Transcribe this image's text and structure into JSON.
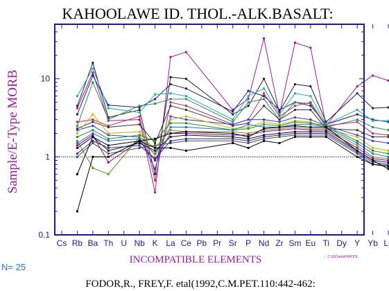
{
  "chart_data": {
    "type": "line",
    "title": "KAHOOLAWE ID. THOL.-ALK.BASALT:",
    "xlabel": "INCOMPATIBLE ELEMENTS",
    "ylabel": "Sample/E-Type MORB",
    "categories": [
      "Cs",
      "Rb",
      "Ba",
      "Th",
      "U",
      "Nb",
      "K",
      "La",
      "Ce",
      "Pb",
      "Pr",
      "Sr",
      "P",
      "Nd",
      "Zr",
      "Sm",
      "Eu",
      "Ti",
      "Dy",
      "Y",
      "Yb",
      "Lu"
    ],
    "y_scale": "log",
    "ylim": [
      0.1,
      50
    ],
    "y_ticks": [
      {
        "value": 0.1,
        "label": "0.1"
      },
      {
        "value": 1,
        "label": "1"
      },
      {
        "value": 10,
        "label": "10"
      }
    ],
    "reference_line": 1,
    "n_label": "N= 25",
    "filepath_label": "← C:\\IGData\\KAHOOL",
    "citation": "FODOR,R., FREY,F. etal(1992,C.M.PET.110:442-462:",
    "colors": {
      "axes": "#1a1a8c",
      "title": "#000000",
      "label": "#9b1a9b",
      "tick_text": "#1a1a8c",
      "n_label": "#2a72c8",
      "reference": "#1a1a8c"
    },
    "series": [
      {
        "color": "#9b1a9b",
        "values": [
          null,
          4.2,
          12.0,
          2.9,
          null,
          3.0,
          0.35,
          19.0,
          22.0,
          null,
          null,
          4.0,
          5.5,
          33.0,
          3.5,
          29.0,
          25.0,
          2.5,
          null,
          8.0,
          11.0,
          9.5
        ]
      },
      {
        "color": "#222222",
        "values": [
          null,
          4.5,
          16.0,
          3.2,
          null,
          4.0,
          0.6,
          10.5,
          10.0,
          null,
          null,
          3.5,
          4.5,
          10.0,
          3.8,
          8.5,
          8.0,
          2.8,
          null,
          6.5,
          4.2,
          4.3
        ]
      },
      {
        "color": "#1a1a8c",
        "values": [
          null,
          3.5,
          11.0,
          4.6,
          null,
          4.3,
          5.5,
          8.5,
          7.5,
          null,
          null,
          3.8,
          7.0,
          6.0,
          4.0,
          5.0,
          4.5,
          2.6,
          null,
          3.5,
          3.0,
          2.8
        ]
      },
      {
        "color": "#22a8b8",
        "values": [
          null,
          6.0,
          13.5,
          4.2,
          null,
          3.7,
          6.3,
          6.5,
          6.0,
          null,
          null,
          3.0,
          6.0,
          7.5,
          3.5,
          6.5,
          6.0,
          2.6,
          null,
          4.0,
          2.9,
          2.9
        ]
      },
      {
        "color": "#2e8b57",
        "values": [
          null,
          2.5,
          9.0,
          3.0,
          null,
          4.5,
          4.8,
          5.5,
          5.5,
          null,
          null,
          2.8,
          5.0,
          5.5,
          3.0,
          5.0,
          4.8,
          2.4,
          null,
          3.0,
          2.4,
          2.2
        ]
      },
      {
        "color": "#b03060",
        "values": [
          null,
          2.8,
          3.0,
          2.5,
          null,
          3.3,
          0.5,
          5.0,
          4.5,
          null,
          null,
          2.6,
          3.0,
          6.5,
          3.3,
          4.5,
          5.0,
          2.5,
          null,
          2.8,
          2.0,
          1.9
        ]
      },
      {
        "color": "#333333",
        "values": [
          null,
          2.3,
          2.8,
          2.4,
          null,
          2.6,
          1.5,
          4.5,
          4.0,
          null,
          null,
          2.5,
          2.7,
          4.5,
          3.0,
          4.0,
          4.0,
          2.3,
          null,
          2.2,
          1.8,
          1.8
        ]
      },
      {
        "color": "#3a3acc",
        "values": [
          null,
          2.2,
          2.5,
          1.9,
          null,
          1.8,
          0.7,
          3.3,
          3.0,
          null,
          null,
          2.6,
          3.0,
          3.0,
          2.8,
          3.2,
          3.0,
          2.5,
          null,
          1.9,
          1.6,
          1.5
        ]
      },
      {
        "color": "#c8b400",
        "values": [
          null,
          2.0,
          3.5,
          2.0,
          null,
          2.1,
          1.0,
          3.0,
          3.3,
          null,
          null,
          2.3,
          2.4,
          2.8,
          2.6,
          2.9,
          2.8,
          2.3,
          null,
          1.8,
          1.3,
          1.2
        ]
      },
      {
        "color": "#228b22",
        "values": [
          null,
          1.8,
          2.2,
          1.7,
          null,
          1.9,
          1.6,
          2.7,
          2.7,
          null,
          null,
          2.2,
          2.3,
          2.6,
          2.5,
          2.8,
          2.7,
          2.5,
          null,
          1.6,
          1.2,
          1.1
        ]
      },
      {
        "color": "#1f6fd0",
        "values": [
          null,
          1.5,
          2.0,
          1.6,
          null,
          1.7,
          1.1,
          2.4,
          2.4,
          null,
          null,
          2.2,
          2.6,
          2.4,
          2.4,
          2.6,
          2.6,
          2.4,
          null,
          1.5,
          1.1,
          1.0
        ]
      },
      {
        "color": "#6b8e23",
        "values": [
          null,
          1.6,
          0.72,
          0.6,
          null,
          1.8,
          1.3,
          2.2,
          2.1,
          null,
          null,
          2.1,
          2.0,
          2.2,
          2.3,
          2.4,
          2.3,
          2.3,
          null,
          1.4,
          1.0,
          0.95
        ]
      },
      {
        "color": "#8b008b",
        "values": [
          null,
          1.4,
          1.9,
          0.85,
          null,
          1.6,
          0.9,
          2.0,
          2.0,
          null,
          null,
          1.9,
          1.9,
          2.1,
          2.2,
          2.3,
          2.2,
          2.2,
          null,
          1.3,
          0.95,
          0.9
        ]
      },
      {
        "color": "#111111",
        "values": [
          null,
          1.3,
          1.8,
          1.2,
          null,
          1.5,
          1.2,
          1.8,
          1.9,
          null,
          null,
          1.8,
          1.7,
          1.9,
          2.0,
          2.1,
          2.1,
          2.1,
          null,
          1.2,
          0.9,
          0.85
        ]
      },
      {
        "color": "#2a2a9c",
        "values": [
          null,
          1.1,
          1.6,
          1.3,
          null,
          1.4,
          0.95,
          1.6,
          1.7,
          null,
          null,
          1.7,
          1.6,
          1.8,
          1.9,
          2.0,
          2.0,
          2.0,
          null,
          1.15,
          0.85,
          0.8
        ]
      },
      {
        "color": "#4b4b4b",
        "values": [
          null,
          1.0,
          1.5,
          1.1,
          null,
          1.3,
          1.4,
          1.5,
          1.6,
          null,
          null,
          1.6,
          1.5,
          1.7,
          1.8,
          1.9,
          1.9,
          1.9,
          null,
          1.1,
          0.8,
          0.78
        ]
      },
      {
        "color": "#000000",
        "values": [
          null,
          0.2,
          1.0,
          1.0,
          null,
          1.6,
          1.3,
          1.3,
          1.2,
          null,
          null,
          1.5,
          1.3,
          1.6,
          1.5,
          1.8,
          1.8,
          1.8,
          null,
          1.0,
          0.8,
          0.75
        ]
      },
      {
        "color": "#000000",
        "values": [
          null,
          0.6,
          1.8,
          1.4,
          null,
          1.6,
          1.7,
          2.0,
          2.1,
          null,
          null,
          2.0,
          1.8,
          2.3,
          2.4,
          2.5,
          2.4,
          2.4,
          null,
          1.2,
          0.9,
          0.7
        ]
      }
    ]
  }
}
